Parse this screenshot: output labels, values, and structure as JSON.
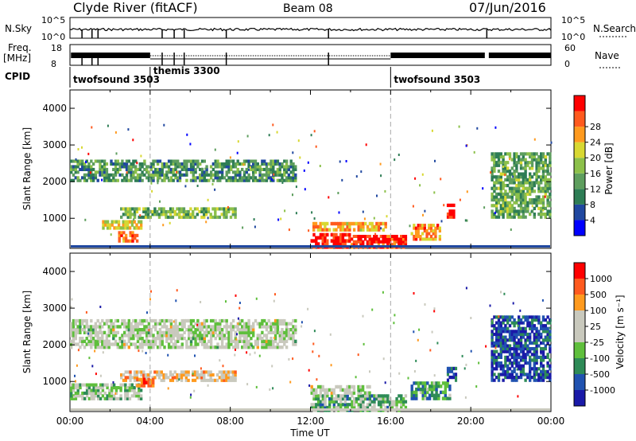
{
  "header": {
    "station": "Clyde River (fitACF)",
    "beam": "Beam 08",
    "date": "07/Jun/2016"
  },
  "status_panels": {
    "nsky_label": "N.Sky",
    "nsearch_label": "N.Search",
    "freq_label": "Freq.",
    "freq_unit": "[MHz]",
    "nave_label": "Nave",
    "cpid_label": "CPID",
    "nsky_ticks": [
      "10^5",
      "10^0"
    ],
    "nsearch_ticks": [
      "10^5",
      "10^0"
    ],
    "freq_ticks": [
      "18",
      "8"
    ],
    "nave_ticks": [
      "60",
      "0"
    ]
  },
  "cpid_segments": [
    {
      "label": "twofsound 3503",
      "start_hour": 0
    },
    {
      "label": "themis 3300",
      "start_hour": 4
    },
    {
      "label": "twofsound 3503",
      "start_hour": 16
    }
  ],
  "colors": {
    "power_scale": [
      "#0000ff",
      "#2048a0",
      "#2e7d55",
      "#5e9e5e",
      "#8cc04a",
      "#d8d832",
      "#ff9a1e",
      "#ff5a1e",
      "#ff0000"
    ],
    "velocity_scale": [
      "#ff0000",
      "#ff5a1e",
      "#ff9a1e",
      "#c9c9bd",
      "#c9c9bd",
      "#5fbf3c",
      "#2e8b57",
      "#2052b0",
      "#1a1aa8"
    ]
  },
  "chart_data": [
    {
      "type": "heatmap",
      "name": "power",
      "ylabel": "Slant Range [km]",
      "ylim": [
        180,
        4500
      ],
      "yticks": [
        1000,
        2000,
        3000,
        4000
      ],
      "colorbar_label": "Power [dB]",
      "colorbar_ticks": [
        4,
        8,
        12,
        16,
        20,
        24,
        28
      ],
      "colorbar_range": [
        0,
        32
      ],
      "bands": [
        {
          "t0": 0.0,
          "t1": 11.3,
          "r0": 2000,
          "r1": 2600,
          "level": 0.35
        },
        {
          "t0": 2.5,
          "t1": 8.3,
          "r0": 1000,
          "r1": 1300,
          "level": 0.45
        },
        {
          "t0": 1.6,
          "t1": 3.6,
          "r0": 700,
          "r1": 950,
          "level": 0.6
        },
        {
          "t0": 2.4,
          "t1": 3.4,
          "r0": 350,
          "r1": 650,
          "level": 0.8
        },
        {
          "t0": 12.1,
          "t1": 15.8,
          "r0": 650,
          "r1": 900,
          "level": 0.7
        },
        {
          "t0": 12.0,
          "t1": 14.0,
          "r0": 180,
          "r1": 600,
          "level": 0.95
        },
        {
          "t0": 14.0,
          "t1": 16.8,
          "r0": 180,
          "r1": 550,
          "level": 0.9
        },
        {
          "t0": 17.0,
          "t1": 18.5,
          "r0": 400,
          "r1": 850,
          "level": 0.75
        },
        {
          "t0": 18.8,
          "t1": 19.2,
          "r0": 1000,
          "r1": 1400,
          "level": 0.95
        },
        {
          "t0": 21.0,
          "t1": 24.0,
          "r0": 1000,
          "r1": 2800,
          "level": 0.4
        }
      ]
    },
    {
      "type": "heatmap",
      "name": "velocity",
      "xlabel": "Time UT",
      "ylabel": "Slant Range [km]",
      "ylim": [
        180,
        4500
      ],
      "yticks": [
        1000,
        2000,
        3000,
        4000
      ],
      "xticks": [
        "00:00",
        "04:00",
        "08:00",
        "12:00",
        "16:00",
        "20:00",
        "00:00"
      ],
      "colorbar_label": "Velocity [m s⁻¹]",
      "colorbar_ticks": [
        1000,
        500,
        100,
        25,
        -25,
        -100,
        -500,
        -1000
      ],
      "bands": [
        {
          "t0": 0.0,
          "t1": 11.3,
          "r0": 1900,
          "r1": 2700,
          "level": 0.5
        },
        {
          "t0": 2.5,
          "t1": 8.3,
          "r0": 1000,
          "r1": 1300,
          "level": 0.35
        },
        {
          "t0": 0.0,
          "t1": 3.6,
          "r0": 500,
          "r1": 950,
          "level": 0.55
        },
        {
          "t0": 3.3,
          "t1": 4.2,
          "r0": 850,
          "r1": 1100,
          "level": 0.2
        },
        {
          "t0": 12.0,
          "t1": 16.8,
          "r0": 180,
          "r1": 650,
          "level": 0.62
        },
        {
          "t0": 12.0,
          "t1": 15.0,
          "r0": 650,
          "r1": 900,
          "level": 0.5
        },
        {
          "t0": 17.0,
          "t1": 19.0,
          "r0": 500,
          "r1": 1000,
          "level": 0.7
        },
        {
          "t0": 18.8,
          "t1": 19.3,
          "r0": 1000,
          "r1": 1400,
          "level": 0.85
        },
        {
          "t0": 21.0,
          "t1": 24.0,
          "r0": 1000,
          "r1": 2800,
          "level": 0.85
        }
      ]
    }
  ]
}
